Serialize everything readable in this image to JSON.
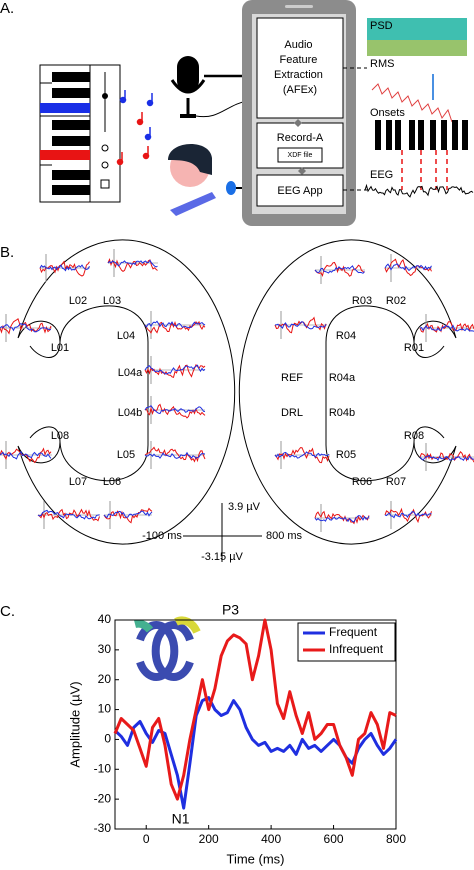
{
  "panel_a": {
    "label": "A.",
    "afex": [
      "Audio",
      "Feature",
      "Extraction",
      "(AFEx)"
    ],
    "record": "Record-A",
    "xdf": "XDF file",
    "eeg_app": "EEG App",
    "psd": "PSD",
    "rms": "RMS",
    "onsets": "Onsets",
    "eeg": "EEG"
  },
  "panel_b": {
    "label": "B.",
    "electrodes": [
      "L02",
      "L03",
      "L01",
      "L04",
      "L04a",
      "L04b",
      "L05",
      "L08",
      "L07",
      "L06",
      "R03",
      "R02",
      "R04",
      "R01",
      "REF",
      "R04a",
      "DRL",
      "R04b",
      "R05",
      "R08",
      "R06",
      "R07"
    ],
    "scale": {
      "y_top": "3.9 µV",
      "y_bottom": "-3.15 µV",
      "x_left": "-100 ms",
      "x_right": "800 ms"
    }
  },
  "chart_data": {
    "type": "line",
    "panel_label": "C.",
    "x_label": "Time (ms)",
    "y_label": "Amplitude (µV)",
    "x": [
      -100,
      -80,
      -60,
      -40,
      -20,
      0,
      20,
      40,
      60,
      80,
      100,
      120,
      140,
      160,
      180,
      200,
      220,
      240,
      260,
      280,
      300,
      320,
      340,
      360,
      380,
      400,
      420,
      440,
      460,
      480,
      500,
      520,
      540,
      560,
      580,
      600,
      620,
      640,
      660,
      680,
      700,
      720,
      740,
      760,
      780,
      800
    ],
    "series": [
      {
        "name": "Frequent",
        "color": "#1f2fe0",
        "values": [
          3,
          1,
          -2,
          4,
          6,
          2,
          -1,
          3,
          2,
          -5,
          -12,
          -23,
          -8,
          8,
          13,
          14,
          10,
          8,
          9,
          13,
          10,
          4,
          0,
          -2,
          -1,
          -4,
          -3,
          -4,
          -2,
          -5,
          0,
          -3,
          -2,
          -4,
          -2,
          0,
          -2,
          -6,
          -8,
          -3,
          0,
          2,
          -2,
          -5,
          -3,
          0
        ]
      },
      {
        "name": "Infrequent",
        "color": "#e81a1a",
        "values": [
          2,
          7,
          5,
          3,
          -3,
          -9,
          4,
          7,
          -2,
          -15,
          -20,
          -12,
          0,
          10,
          20,
          10,
          17,
          28,
          33,
          35,
          34,
          32,
          20,
          28,
          40,
          30,
          12,
          7,
          16,
          8,
          2,
          9,
          0,
          2,
          5,
          5,
          -2,
          -6,
          -12,
          0,
          2,
          9,
          5,
          -3,
          9,
          8
        ]
      }
    ],
    "xlim": [
      -100,
      800
    ],
    "ylim": [
      -30,
      40
    ],
    "xticks": [
      0,
      200,
      400,
      600,
      800
    ],
    "yticks": [
      -30,
      -20,
      -10,
      0,
      10,
      20,
      30,
      40
    ],
    "legend": "upper right",
    "annotations": [
      {
        "text": "P3",
        "x": 270,
        "y": 43
      },
      {
        "text": "N1",
        "x": 110,
        "y": -27
      }
    ]
  }
}
